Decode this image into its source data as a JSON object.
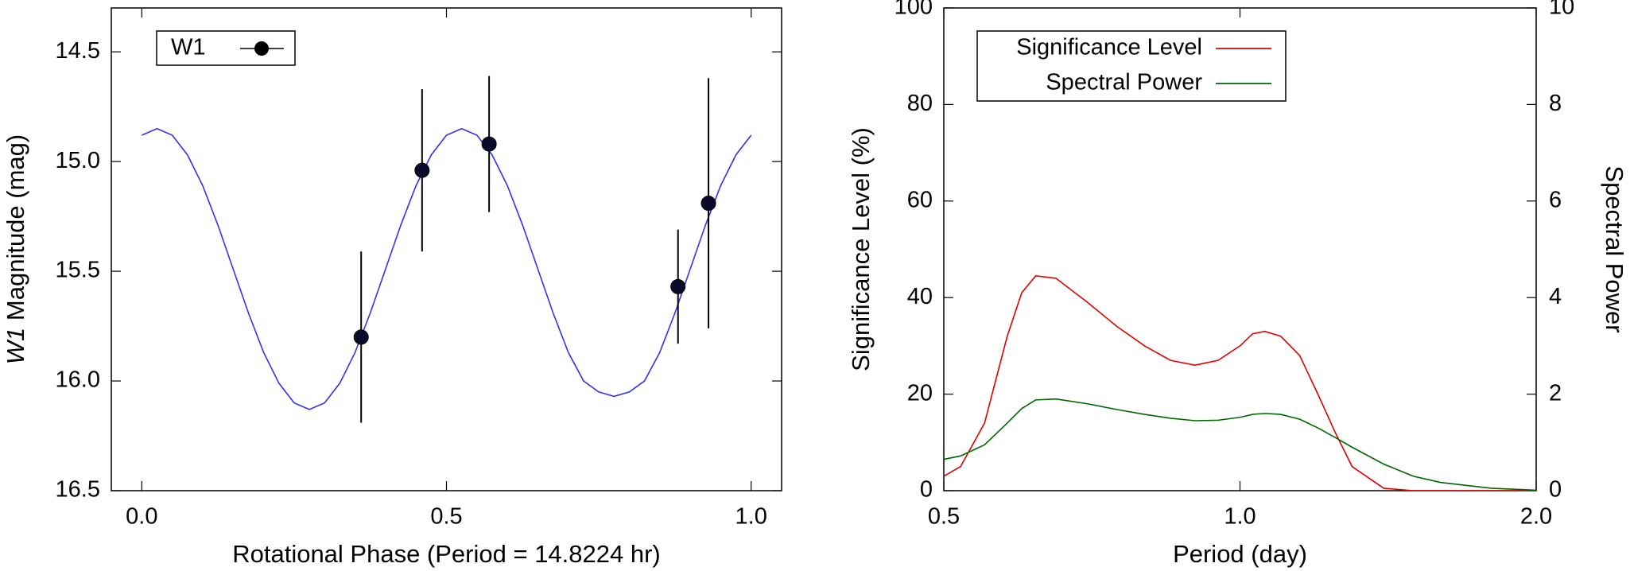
{
  "chart_data": [
    {
      "type": "scatter",
      "x_label": "Rotational Phase (Period = 14.8224 hr)",
      "y_label_italic": "W1",
      "y_label": " Magnitude (mag)",
      "xlim": [
        -0.05,
        1.05
      ],
      "xticks": [
        {
          "value": 0,
          "label": "0.0"
        },
        0.5,
        {
          "value": 1,
          "label": "1.0"
        }
      ],
      "ylim": [
        16.5,
        14.3
      ],
      "yticks": [
        14.5,
        {
          "value": 15,
          "label": "15.0"
        },
        15.5,
        {
          "value": 16,
          "label": "16.0"
        },
        16.5
      ],
      "legend": "upper left",
      "series": [
        {
          "name": "W1",
          "color": "#000000",
          "x": [
            0.36,
            0.46,
            0.57,
            0.88,
            0.93
          ],
          "values": [
            15.8,
            15.04,
            14.92,
            15.57,
            15.19
          ],
          "errors": [
            0.39,
            0.37,
            0.31,
            0.26,
            0.57
          ]
        }
      ],
      "fit": {
        "color": "#3333ee",
        "x": [
          0,
          0.025,
          0.05,
          0.075,
          0.1,
          0.125,
          0.15,
          0.175,
          0.2,
          0.225,
          0.25,
          0.275,
          0.3,
          0.325,
          0.35,
          0.375,
          0.4,
          0.425,
          0.45,
          0.475,
          0.5,
          0.525,
          0.55,
          0.575,
          0.6,
          0.625,
          0.65,
          0.675,
          0.7,
          0.725,
          0.75,
          0.775,
          0.8,
          0.825,
          0.85,
          0.875,
          0.9,
          0.925,
          0.95,
          0.975,
          1.0
        ],
        "values": [
          14.88,
          14.85,
          14.88,
          14.97,
          15.11,
          15.29,
          15.49,
          15.69,
          15.87,
          16.01,
          16.1,
          16.13,
          16.1,
          16.01,
          15.87,
          15.69,
          15.49,
          15.29,
          15.11,
          14.97,
          14.88,
          14.85,
          14.88,
          14.97,
          15.11,
          15.29,
          15.49,
          15.69,
          15.87,
          16.0,
          16.05,
          16.07,
          16.05,
          16.0,
          15.87,
          15.69,
          15.49,
          15.29,
          15.11,
          14.97,
          14.88
        ]
      }
    },
    {
      "type": "line",
      "xlog": true,
      "x_label": "Period (day)",
      "y_label": "Significance Level (%)",
      "y2_label": "Spectral Power",
      "xlim": [
        0.5,
        2
      ],
      "xticks": [
        0.5,
        {
          "value": 1,
          "label": "1.0"
        },
        {
          "value": 2,
          "label": "2.0"
        }
      ],
      "ylim": [
        0,
        100
      ],
      "yticks": [
        0,
        20,
        40,
        60,
        80,
        100
      ],
      "y2lim": [
        0,
        10
      ],
      "y2ticks": [
        0,
        2,
        4,
        6,
        8,
        10
      ],
      "legend": "upper left",
      "x": [
        0.5,
        0.52,
        0.55,
        0.58,
        0.6,
        0.62,
        0.65,
        0.7,
        0.75,
        0.8,
        0.85,
        0.9,
        0.95,
        1.0,
        1.03,
        1.06,
        1.1,
        1.15,
        1.2,
        1.25,
        1.3,
        1.4,
        1.5,
        1.6,
        1.8,
        2.0
      ],
      "series": [
        {
          "name": "Significance Level",
          "color": "#e00000",
          "values": [
            3,
            5,
            14,
            32,
            41,
            44.5,
            44,
            39,
            34,
            30,
            27,
            26,
            27,
            30,
            32.5,
            33,
            32,
            28,
            20,
            12,
            5,
            0.5,
            0,
            0,
            0,
            0
          ]
        },
        {
          "name": "Spectral Power",
          "color": "#006600",
          "axis": "y2",
          "values": [
            0.65,
            0.72,
            0.95,
            1.4,
            1.7,
            1.88,
            1.9,
            1.8,
            1.68,
            1.58,
            1.5,
            1.45,
            1.46,
            1.52,
            1.58,
            1.6,
            1.58,
            1.48,
            1.3,
            1.1,
            0.9,
            0.55,
            0.3,
            0.17,
            0.05,
            0.01
          ]
        }
      ]
    }
  ]
}
